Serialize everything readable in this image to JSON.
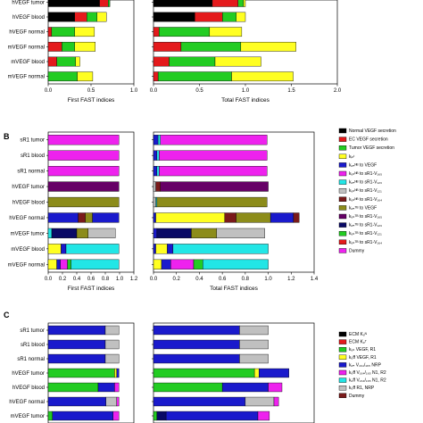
{
  "colors": {
    "black": "#000000",
    "red": "#e41a1c",
    "green": "#22cc22",
    "yellow": "#ffff22",
    "magenta": "#ee22ee",
    "blue": "#1a1acc",
    "purple": "#660066",
    "olive": "#8c8c1a",
    "cyan": "#22e6e6",
    "maroon": "#7a1a1a",
    "lightgray": "#c0c0c0",
    "darkblue": "#0a0a66"
  },
  "chart_data": [
    {
      "panel": "A",
      "type": "bar",
      "orientation": "horizontal",
      "stacked": true,
      "categories": [
        "hVEGF tumor",
        "hVEGF blood",
        "hVEGF normal",
        "mVEGF normal",
        "mVEGF blood",
        "mVEGF normal"
      ],
      "left": {
        "xlabel": "First FAST indices",
        "xlim": [
          0,
          1.0
        ],
        "ticks": [
          "0.0",
          "0.5",
          "1.0"
        ],
        "tick_values": [
          0,
          0.5,
          1.0
        ],
        "segments": [
          [
            {
              "c": "black",
              "v": 0.6
            },
            {
              "c": "red",
              "v": 0.1
            },
            {
              "c": "green",
              "v": 0.02
            }
          ],
          [
            {
              "c": "black",
              "v": 0.31
            },
            {
              "c": "red",
              "v": 0.14
            },
            {
              "c": "green",
              "v": 0.12
            },
            {
              "c": "yellow",
              "v": 0.11
            }
          ],
          [
            {
              "c": "red",
              "v": 0.04
            },
            {
              "c": "green",
              "v": 0.27
            },
            {
              "c": "yellow",
              "v": 0.23
            }
          ],
          [
            {
              "c": "red",
              "v": 0.16
            },
            {
              "c": "green",
              "v": 0.15
            },
            {
              "c": "yellow",
              "v": 0.24
            }
          ],
          [
            {
              "c": "red",
              "v": 0.1
            },
            {
              "c": "green",
              "v": 0.22
            },
            {
              "c": "yellow",
              "v": 0.05
            }
          ],
          [
            {
              "c": "green",
              "v": 0.34
            },
            {
              "c": "yellow",
              "v": 0.18
            }
          ]
        ]
      },
      "right": {
        "xlabel": "Total FAST indices",
        "xlim": [
          0,
          2.0
        ],
        "ticks": [
          "0.0",
          "0.5",
          "1.0",
          "1.5",
          "2.0"
        ],
        "tick_values": [
          0,
          0.5,
          1.0,
          1.5,
          2.0
        ],
        "segments": [
          [
            {
              "c": "black",
              "v": 0.64
            },
            {
              "c": "red",
              "v": 0.28
            },
            {
              "c": "green",
              "v": 0.06
            },
            {
              "c": "yellow",
              "v": 0.02
            }
          ],
          [
            {
              "c": "black",
              "v": 0.45
            },
            {
              "c": "red",
              "v": 0.3
            },
            {
              "c": "green",
              "v": 0.15
            },
            {
              "c": "yellow",
              "v": 0.1
            }
          ],
          [
            {
              "c": "red",
              "v": 0.06
            },
            {
              "c": "green",
              "v": 0.55
            },
            {
              "c": "yellow",
              "v": 0.35
            }
          ],
          [
            {
              "c": "red",
              "v": 0.3
            },
            {
              "c": "green",
              "v": 0.65
            },
            {
              "c": "yellow",
              "v": 0.6
            }
          ],
          [
            {
              "c": "red",
              "v": 0.17
            },
            {
              "c": "green",
              "v": 0.5
            },
            {
              "c": "yellow",
              "v": 0.5
            }
          ],
          [
            {
              "c": "red",
              "v": 0.05
            },
            {
              "c": "green",
              "v": 0.8
            },
            {
              "c": "yellow",
              "v": 0.67
            }
          ]
        ]
      },
      "legend": []
    },
    {
      "panel": "B",
      "type": "bar",
      "orientation": "horizontal",
      "stacked": true,
      "categories": [
        "sR1 tumor",
        "sR1 blood",
        "sR1 normal",
        "hVEGF tumor",
        "hVEGF blood",
        "hVEGF normal",
        "mVEGF tumor",
        "mVEGF blood",
        "mVEGF normal"
      ],
      "left": {
        "xlabel": "First FAST indices",
        "xlim": [
          0,
          1.2
        ],
        "ticks": [
          "0.0",
          "0.2",
          "0.4",
          "0.6",
          "0.8",
          "1.0",
          "1.2"
        ],
        "tick_values": [
          0,
          0.2,
          0.4,
          0.6,
          0.8,
          1.0,
          1.2
        ],
        "segments": [
          [
            {
              "c": "magenta",
              "v": 0.99
            }
          ],
          [
            {
              "c": "magenta",
              "v": 0.99
            }
          ],
          [
            {
              "c": "magenta",
              "v": 0.99
            }
          ],
          [
            {
              "c": "purple",
              "v": 0.99
            }
          ],
          [
            {
              "c": "olive",
              "v": 0.99
            }
          ],
          [
            {
              "c": "blue",
              "v": 0.42
            },
            {
              "c": "maroon",
              "v": 0.1
            },
            {
              "c": "olive",
              "v": 0.1
            },
            {
              "c": "blue",
              "v": 0.37
            }
          ],
          [
            {
              "c": "cyan",
              "v": 0.05
            },
            {
              "c": "darkblue",
              "v": 0.35
            },
            {
              "c": "olive",
              "v": 0.16
            },
            {
              "c": "lightgray",
              "v": 0.38
            }
          ],
          [
            {
              "c": "yellow",
              "v": 0.18
            },
            {
              "c": "blue",
              "v": 0.07
            },
            {
              "c": "cyan",
              "v": 0.74
            }
          ],
          [
            {
              "c": "yellow",
              "v": 0.12
            },
            {
              "c": "blue",
              "v": 0.05
            },
            {
              "c": "magenta",
              "v": 0.1
            },
            {
              "c": "green",
              "v": 0.05
            },
            {
              "c": "cyan",
              "v": 0.67
            }
          ]
        ]
      },
      "right": {
        "xlabel": "Total FAST indices",
        "xlim": [
          0,
          1.4
        ],
        "ticks": [
          "0.0",
          "0.2",
          "0.4",
          "0.6",
          "0.8",
          "1.0",
          "1.2",
          "1.4"
        ],
        "tick_values": [
          0,
          0.2,
          0.4,
          0.6,
          0.8,
          1.0,
          1.2,
          1.4
        ],
        "segments": [
          [
            {
              "c": "blue",
              "v": 0.04
            },
            {
              "c": "cyan",
              "v": 0.02
            },
            {
              "c": "magenta",
              "v": 0.93
            }
          ],
          [
            {
              "c": "blue",
              "v": 0.03
            },
            {
              "c": "cyan",
              "v": 0.02
            },
            {
              "c": "magenta",
              "v": 0.94
            }
          ],
          [
            {
              "c": "blue",
              "v": 0.03
            },
            {
              "c": "cyan",
              "v": 0.02
            },
            {
              "c": "magenta",
              "v": 0.94
            }
          ],
          [
            {
              "c": "lightgray",
              "v": 0.02
            },
            {
              "c": "maroon",
              "v": 0.04
            },
            {
              "c": "purple",
              "v": 0.94
            }
          ],
          [
            {
              "c": "lightgray",
              "v": 0.02
            },
            {
              "c": "cyan",
              "v": 0.01
            },
            {
              "c": "olive",
              "v": 0.96
            }
          ],
          [
            {
              "c": "blue",
              "v": 0.02
            },
            {
              "c": "yellow",
              "v": 0.6
            },
            {
              "c": "maroon",
              "v": 0.1
            },
            {
              "c": "olive",
              "v": 0.3
            },
            {
              "c": "blue",
              "v": 0.2
            },
            {
              "c": "maroon",
              "v": 0.05
            }
          ],
          [
            {
              "c": "blue",
              "v": 0.03
            },
            {
              "c": "darkblue",
              "v": 0.3
            },
            {
              "c": "olive",
              "v": 0.22
            },
            {
              "c": "lightgray",
              "v": 0.42
            }
          ],
          [
            {
              "c": "blue",
              "v": 0.02
            },
            {
              "c": "yellow",
              "v": 0.1
            },
            {
              "c": "blue",
              "v": 0.05
            },
            {
              "c": "cyan",
              "v": 0.83
            }
          ],
          [
            {
              "c": "yellow",
              "v": 0.07
            },
            {
              "c": "blue",
              "v": 0.08
            },
            {
              "c": "magenta",
              "v": 0.2
            },
            {
              "c": "green",
              "v": 0.08
            },
            {
              "c": "cyan",
              "v": 0.57
            }
          ]
        ]
      },
      "legend": [
        {
          "label": "Normal VEGF secretion",
          "c": "black"
        },
        {
          "label": "EC VEGF secretion",
          "c": "red"
        },
        {
          "label": "Tumor VEGF secretion",
          "c": "green"
        },
        {
          "label": "kᵢₙᵗ",
          "c": "yellow"
        },
        {
          "label": "kₒₙᴺᴮ to VEGF",
          "c": "blue"
        },
        {
          "label": "kₒₙᴺᴮ to sR1-V₁₆₅",
          "c": "magenta"
        },
        {
          "label": "kₒₙᴺᴮ to sR1-V₁₂₀",
          "c": "cyan"
        },
        {
          "label": "kₒₙᴺᴮ to sR1-V₁₂₁",
          "c": "lightgray"
        },
        {
          "label": "kₒₙᴺᴮ to sR1-V₁₆₄",
          "c": "maroon"
        },
        {
          "label": "kₒₙᵀᴮ to VEGF",
          "c": "olive"
        },
        {
          "label": "kₒₙᵀᴮ to sR1-V₁₆₅",
          "c": "purple"
        },
        {
          "label": "kₒₙᵀᴮ to sR1-V₁₂₀",
          "c": "darkblue"
        },
        {
          "label": "kₒₙᵀᴮ to sR1-V₁₂₁",
          "c": "green"
        },
        {
          "label": "kₒₙᵀᴮ to sR1-V₁₆₄",
          "c": "red"
        },
        {
          "label": "Dummy",
          "c": "magenta"
        }
      ]
    },
    {
      "panel": "C",
      "type": "bar",
      "orientation": "horizontal",
      "stacked": true,
      "categories": [
        "sR1 tumor",
        "sR1 blood",
        "sR1 normal",
        "hVEGF tumor",
        "hVEGF blood",
        "hVEGF normal",
        "mVEGF tumor"
      ],
      "left": {
        "xlabel": "",
        "xlim": [
          0,
          1.2
        ],
        "ticks": [],
        "tick_values": [],
        "segments": [
          [
            {
              "c": "blue",
              "v": 0.8
            },
            {
              "c": "lightgray",
              "v": 0.19
            }
          ],
          [
            {
              "c": "blue",
              "v": 0.8
            },
            {
              "c": "lightgray",
              "v": 0.19
            }
          ],
          [
            {
              "c": "blue",
              "v": 0.8
            },
            {
              "c": "lightgray",
              "v": 0.19
            }
          ],
          [
            {
              "c": "green",
              "v": 0.93
            },
            {
              "c": "yellow",
              "v": 0.03
            },
            {
              "c": "blue",
              "v": 0.03
            }
          ],
          [
            {
              "c": "green",
              "v": 0.7
            },
            {
              "c": "blue",
              "v": 0.23
            },
            {
              "c": "magenta",
              "v": 0.06
            }
          ],
          [
            {
              "c": "blue",
              "v": 0.81
            },
            {
              "c": "lightgray",
              "v": 0.15
            },
            {
              "c": "magenta",
              "v": 0.03
            }
          ],
          [
            {
              "c": "green",
              "v": 0.06
            },
            {
              "c": "blue",
              "v": 0.85
            },
            {
              "c": "magenta",
              "v": 0.08
            }
          ]
        ]
      },
      "right": {
        "xlabel": "",
        "xlim": [
          0,
          1.4
        ],
        "ticks": [],
        "tick_values": [],
        "segments": [
          [
            {
              "c": "blue",
              "v": 0.75
            },
            {
              "c": "lightgray",
              "v": 0.25
            }
          ],
          [
            {
              "c": "blue",
              "v": 0.75
            },
            {
              "c": "lightgray",
              "v": 0.25
            }
          ],
          [
            {
              "c": "blue",
              "v": 0.75
            },
            {
              "c": "lightgray",
              "v": 0.25
            }
          ],
          [
            {
              "c": "green",
              "v": 0.88
            },
            {
              "c": "yellow",
              "v": 0.04
            },
            {
              "c": "blue",
              "v": 0.26
            }
          ],
          [
            {
              "c": "green",
              "v": 0.6
            },
            {
              "c": "blue",
              "v": 0.4
            },
            {
              "c": "magenta",
              "v": 0.12
            }
          ],
          [
            {
              "c": "blue",
              "v": 0.8
            },
            {
              "c": "lightgray",
              "v": 0.25
            },
            {
              "c": "magenta",
              "v": 0.04
            }
          ],
          [
            {
              "c": "green",
              "v": 0.03
            },
            {
              "c": "darkblue",
              "v": 0.08
            },
            {
              "c": "blue",
              "v": 0.8
            },
            {
              "c": "magenta",
              "v": 0.1
            }
          ]
        ]
      },
      "legend": [
        {
          "label": "ECM Kₒᴺ",
          "c": "black"
        },
        {
          "label": "ECM Kₒᵀ",
          "c": "red"
        },
        {
          "label": "kₒₙ VEGF, R1",
          "c": "green"
        },
        {
          "label": "kₒff VEGF, R1",
          "c": "yellow"
        },
        {
          "label": "kₒₙ V₁₆₄/₁₆₅ NRP",
          "c": "blue"
        },
        {
          "label": "kₒff V₁₆₄/₁₆₅ N1, R2",
          "c": "magenta"
        },
        {
          "label": "kₒff V₁₆₄/₁₆₅ N1, R2",
          "c": "cyan"
        },
        {
          "label": "kₒff R1, NRP",
          "c": "lightgray"
        },
        {
          "label": "Dummy",
          "c": "maroon"
        }
      ]
    }
  ]
}
